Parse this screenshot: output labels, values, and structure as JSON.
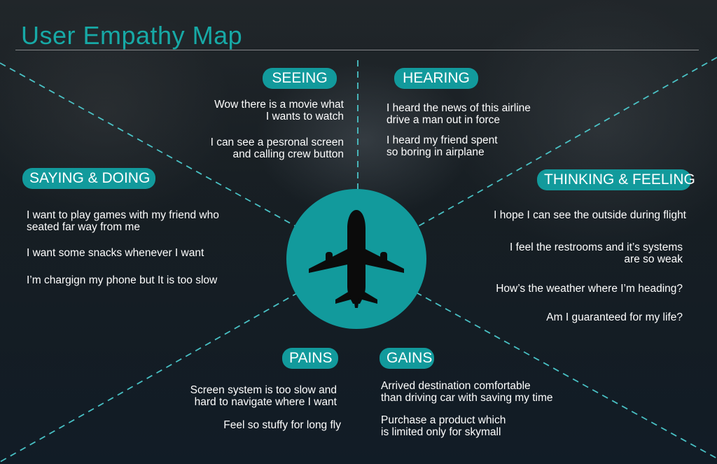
{
  "title": "User Empathy Map",
  "colors": {
    "accent": "#129a9c",
    "title": "#17a9a6",
    "text": "#ffffff"
  },
  "center_icon": "airplane-icon",
  "sections": {
    "seeing": {
      "label": "SEEING",
      "items": [
        "Wow there is a movie what\nI wants to watch",
        "I can see a pesronal screen\nand calling crew button"
      ]
    },
    "hearing": {
      "label": "HEARING",
      "items": [
        "I heard the news of this airline\ndrive a man out in force",
        "I heard my friend spent\nso boring in airplane"
      ]
    },
    "saying_doing": {
      "label": "SAYING & DOING",
      "items": [
        "I want to play games with my friend who\nseated far way from me",
        "I want some snacks whenever I want",
        "I’m chargign my phone but It is too slow"
      ]
    },
    "thinking_feeling": {
      "label": "THINKING & FEELING",
      "items": [
        "I hope I can see the outside during flight",
        "I feel the restrooms and it’s systems\nare so weak",
        "How’s the weather where I’m heading?",
        "Am I guaranteed for my life?"
      ]
    },
    "pains": {
      "label": "PAINS",
      "items": [
        "Screen system is too slow and\nhard to navigate where I want",
        "Feel so stuffy for long fly"
      ]
    },
    "gains": {
      "label": "GAINS",
      "items": [
        "Arrived destination comfortable\nthan driving car with saving my time",
        "Purchase a product which\nis limited only for skymall"
      ]
    }
  }
}
